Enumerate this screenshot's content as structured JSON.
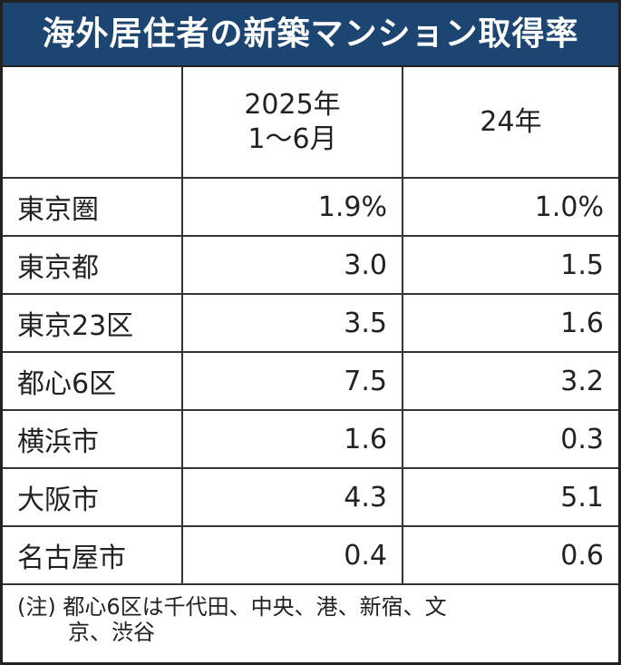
{
  "chart_data": {
    "type": "table",
    "title": "海外居住者の新築マンション取得率",
    "columns": [
      "",
      "2025年\n1〜6月",
      "24年"
    ],
    "column_lines": [
      [],
      [
        "2025年",
        "1〜6月"
      ],
      [
        "24年"
      ]
    ],
    "rows": [
      {
        "label": "東京圏",
        "values": [
          "1.9%",
          "1.0%"
        ]
      },
      {
        "label": "東京都",
        "values": [
          "3.0",
          "1.5"
        ]
      },
      {
        "label": "東京23区",
        "values": [
          "3.5",
          "1.6"
        ]
      },
      {
        "label": "都心6区",
        "values": [
          "7.5",
          "3.2"
        ]
      },
      {
        "label": "横浜市",
        "values": [
          "1.6",
          "0.3"
        ]
      },
      {
        "label": "大阪市",
        "values": [
          "4.3",
          "5.1"
        ]
      },
      {
        "label": "名古屋市",
        "values": [
          "0.4",
          "0.6"
        ]
      }
    ],
    "note_lines": [
      "(注) 都心6区は千代田、中央、港、新宿、文",
      "京、渋谷"
    ]
  },
  "colors": {
    "header_bg": "#1c4572",
    "header_text": "#ffffff"
  }
}
